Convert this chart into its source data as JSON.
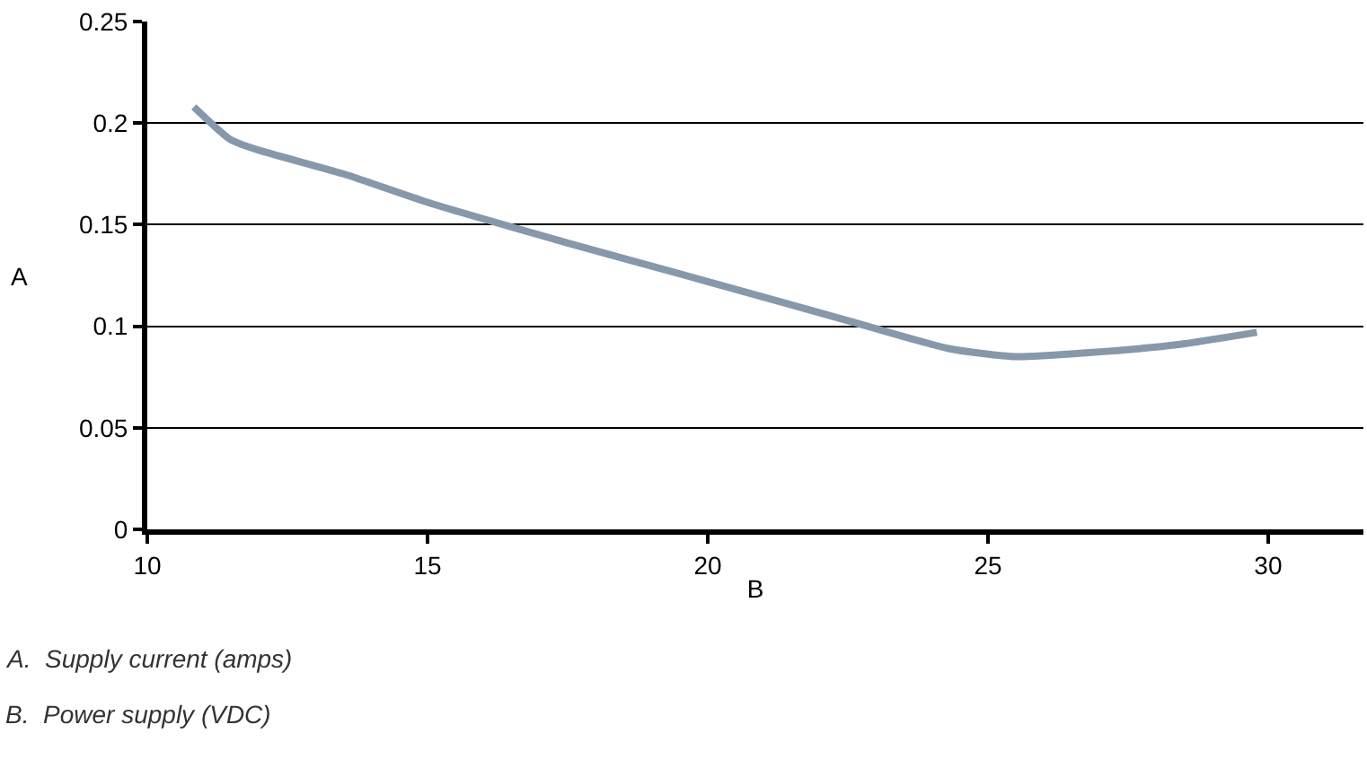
{
  "chart_data": {
    "type": "line",
    "xlabel": "B",
    "ylabel": "A",
    "x": [
      10.83,
      11.48,
      11.95,
      13.5,
      15,
      17.5,
      20,
      22.6,
      24.3,
      25.5,
      26.8,
      28.4,
      29.8
    ],
    "series": [
      {
        "color": "#8798ab",
        "values": [
          0.208,
          0.192,
          0.187,
          0.175,
          0.161,
          0.141,
          0.122,
          0.102,
          0.089,
          0.085,
          0.087,
          0.091,
          0.097
        ]
      }
    ],
    "xlim": [
      10,
      31.7
    ],
    "xticks": [
      10,
      15,
      20,
      25,
      30
    ],
    "ylim": [
      0,
      0.25
    ],
    "yticks": [
      0,
      0.05,
      0.1,
      0.15,
      0.2,
      0.25
    ],
    "grid": "y",
    "legend": false,
    "marker": "none",
    "line_style": "solid",
    "annotations": [
      "A.  Supply current (amps)",
      "B.  Power supply (VDC)"
    ]
  }
}
